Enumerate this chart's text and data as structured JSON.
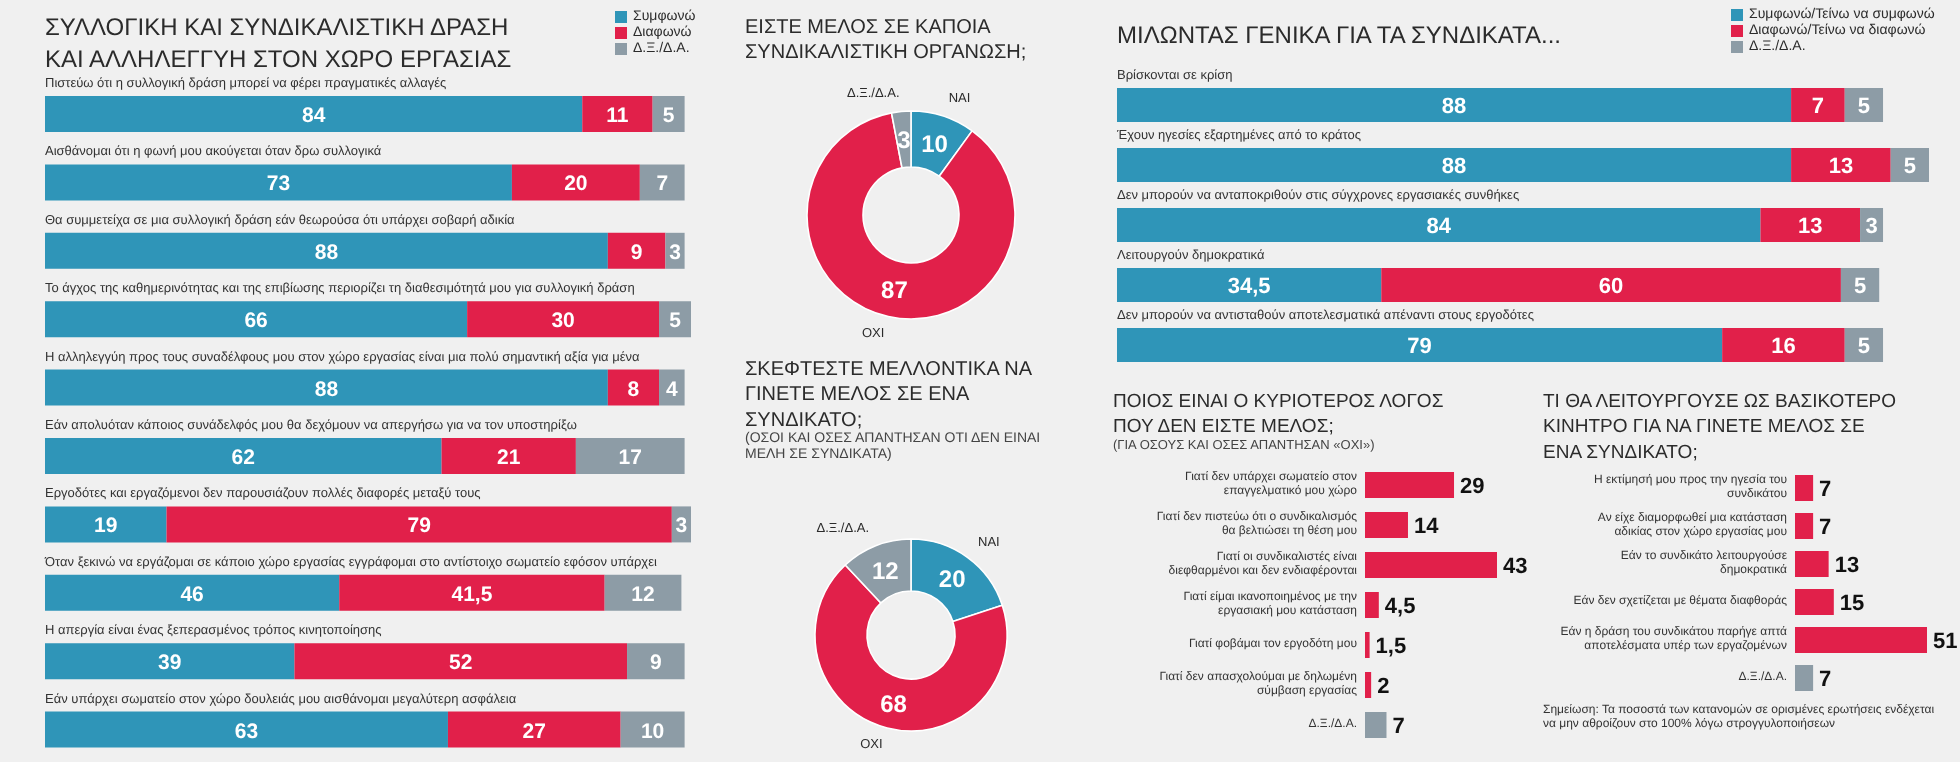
{
  "chart_data": [
    {
      "type": "bar",
      "orientation": "horizontal",
      "stacked": true,
      "legend": "top right",
      "title": "ΣΥΛΛΟΓΙΚΗ ΚΑΙ ΣΥΝΔΙΚΑΛΙΣΤΙΚΗ ΔΡΑΣΗ ΚΑΙ ΑΛΛΗΛΕΓΓΥΗ ΣΤΟΝ ΧΩΡΟ ΕΡΓΑΣΙΑΣ",
      "categories": [
        "Πιστεύω ότι η συλλογική δράση μπορεί να φέρει πραγματικές αλλαγές",
        "Αισθάνομαι ότι η φωνή μου ακούγεται όταν δρω συλλογικά",
        "Θα συμμετείχα σε μια συλλογική δράση εάν θεωρούσα ότι υπάρχει σοβαρή αδικία",
        "Το άγχος της καθημερινότητας και της επιβίωσης περιορίζει τη διαθεσιμότητά μου για συλλογική δράση",
        "Η αλληλεγγύη προς τους συναδέλφους μου στον χώρο εργασίας είναι μια πολύ σημαντική αξία για μένα",
        "Εάν απολυόταν κάποιος συνάδελφός μου θα δεχόμουν να απεργήσω για να τον υποστηρίξω",
        "Εργοδότες και εργαζόμενοι δεν παρουσιάζουν πολλές διαφορές μεταξύ τους",
        "Όταν ξεκινώ να εργάζομαι σε κάποιο χώρο εργασίας εγγράφομαι στο αντίστοιχο σωματείο εφόσον υπάρχει",
        "Η απεργία είναι ένας ξεπερασμένος τρόπος κινητοποίησης",
        "Εάν υπάρχει σωματείο στον χώρο δουλειάς μου αισθάνομαι μεγαλύτερη ασφάλεια"
      ],
      "series": [
        {
          "name": "Συμφωνώ",
          "color": "#2f95b8",
          "values": [
            84,
            73,
            88,
            66,
            88,
            62,
            19,
            46,
            39,
            63
          ],
          "value_labels": [
            "84",
            "73",
            "88",
            "66",
            "88",
            "62",
            "19",
            "46",
            "39",
            "63"
          ]
        },
        {
          "name": "Διαφωνώ",
          "color": "#e1204a",
          "values": [
            11,
            20,
            9,
            30,
            8,
            21,
            79,
            41.5,
            52,
            27
          ],
          "value_labels": [
            "11",
            "20",
            "9",
            "30",
            "8",
            "21",
            "79",
            "41,5",
            "52",
            "27"
          ]
        },
        {
          "name": "Δ.Ξ./Δ.Α.",
          "color": "#8d9ca6",
          "values": [
            5,
            7,
            3,
            5,
            4,
            17,
            3,
            12,
            9,
            10
          ],
          "value_labels": [
            "5",
            "7",
            "3",
            "5",
            "4",
            "17",
            "3",
            "12",
            "9",
            "10"
          ]
        }
      ]
    },
    {
      "type": "donut",
      "title": "ΕΙΣΤΕ ΜΕΛΟΣ ΣΕ ΚΑΠΟΙΑ ΣΥΝΔΙΚΑΛΙΣΤΙΚΗ ΟΡΓΑΝΩΣΗ;",
      "data_labels": true,
      "categories": [
        "ΝΑΙ",
        "ΟΧΙ",
        "Δ.Ξ./Δ.Α."
      ],
      "values": [
        10,
        87,
        3
      ],
      "colors": [
        "#2f95b8",
        "#e1204a",
        "#8d9ca6"
      ]
    },
    {
      "type": "donut",
      "title": "ΣΚΕΦΤΕΣΤΕ ΜΕΛΛΟΝΤΙΚΑ ΝΑ ΓΙΝΕΤΕ ΜΕΛΟΣ ΣΕ ΕΝΑ ΣΥΝΔΙΚΑΤΟ;",
      "subtitle": "(ΟΣΟΙ ΚΑΙ ΟΣΕΣ ΑΠΑΝΤΗΣΑΝ ΟΤΙ ΔΕΝ ΕΙΝΑΙ ΜΕΛΗ ΣΕ ΣΥΝΔΙΚΑΤΑ)",
      "data_labels": true,
      "categories": [
        "ΝΑΙ",
        "ΟΧΙ",
        "Δ.Ξ./Δ.Α."
      ],
      "values": [
        20,
        68,
        12
      ],
      "colors": [
        "#2f95b8",
        "#e1204a",
        "#8d9ca6"
      ]
    },
    {
      "type": "bar",
      "orientation": "horizontal",
      "stacked": true,
      "legend": "top right",
      "title": "ΜΙΛΩΝΤΑΣ ΓΕΝΙΚΑ ΓΙΑ ΤΑ ΣΥΝΔΙΚΑΤΑ...",
      "categories": [
        "Βρίσκονται σε κρίση",
        "Έχουν ηγεσίες εξαρτημένες από το κράτος",
        "Δεν μπορούν να ανταποκριθούν στις σύγχρονες εργασιακές συνθήκες",
        "Λειτουργούν δημοκρατικά",
        "Δεν μπορούν να αντισταθούν αποτελεσματικά απέναντι στους εργοδότες"
      ],
      "series": [
        {
          "name": "Συμφωνώ/Τείνω να συμφωνώ",
          "color": "#2f95b8",
          "values": [
            88,
            88,
            84,
            34.5,
            79
          ],
          "value_labels": [
            "88",
            "88",
            "84",
            "34,5",
            "79"
          ]
        },
        {
          "name": "Διαφωνώ/Τείνω να διαφωνώ",
          "color": "#e1204a",
          "values": [
            7,
            13,
            13,
            60,
            16
          ],
          "value_labels": [
            "7",
            "13",
            "13",
            "60",
            "16"
          ]
        },
        {
          "name": "Δ.Ξ./Δ.Α.",
          "color": "#8d9ca6",
          "values": [
            5,
            5,
            3,
            5,
            5
          ],
          "value_labels": [
            "5",
            "5",
            "3",
            "5",
            "5"
          ]
        }
      ]
    },
    {
      "type": "bar",
      "orientation": "horizontal",
      "title": "ΠΟΙΟΣ ΕΙΝΑΙ Ο ΚΥΡΙΟΤΕΡΟΣ ΛΟΓΟΣ ΠΟΥ ΔΕΝ ΕΙΣΤΕ ΜΕΛΟΣ;",
      "subtitle": "(ΓΙΑ ΟΣΟΥΣ ΚΑΙ ΟΣΕΣ ΑΠΑΝΤΗΣΑΝ «ΟΧΙ»)",
      "categories": [
        "Γιατί δεν υπάρχει σωματείο στον επαγγελματικό μου χώρο",
        "Γιατί δεν πιστεύω ότι ο συνδικαλισμός θα βελτιώσει τη θέση μου",
        "Γιατί οι συνδικαλιστές είναι διεφθαρμένοι και δεν ενδιαφέρονται",
        "Γιατί είμαι ικανοποιημένος με την εργασιακή μου κατάσταση",
        "Γιατί φοβάμαι τον εργοδότη μου",
        "Γιατί δεν απασχολούμαι με δηλωμένη σύμβαση εργασίας",
        "Δ.Ξ./Δ.Α."
      ],
      "values": [
        29,
        14,
        43,
        4.5,
        1.5,
        2,
        7
      ],
      "value_labels": [
        "29",
        "14",
        "43",
        "4,5",
        "1,5",
        "2",
        "7"
      ],
      "colors": [
        "#e1204a",
        "#e1204a",
        "#e1204a",
        "#e1204a",
        "#e1204a",
        "#e1204a",
        "#8d9ca6"
      ]
    },
    {
      "type": "bar",
      "orientation": "horizontal",
      "title": "ΤΙ ΘΑ ΛΕΙΤΟΥΡΓΟΥΣΕ ΩΣ ΒΑΣΙΚΟΤΕΡΟ ΚΙΝΗΤΡΟ ΓΙΑ ΝΑ ΓΙΝΕΤΕ ΜΕΛΟΣ ΣΕ ΕΝΑ ΣΥΝΔΙΚΑΤΟ;",
      "categories": [
        "Η εκτίμησή μου προς την ηγεσία του συνδικάτου",
        "Αν είχε διαμορφωθεί μια κατάσταση αδικίας στον χώρο εργασίας μου",
        "Εάν το συνδικάτο λειτουργούσε δημοκρατικά",
        "Εάν δεν σχετίζεται με θέματα διαφθοράς",
        "Εάν η δράση του συνδικάτου παρήγε απτά αποτελέσματα υπέρ των εργαζομένων",
        "Δ.Ξ./Δ.Α."
      ],
      "values": [
        7,
        7,
        13,
        15,
        51,
        7
      ],
      "value_labels": [
        "7",
        "7",
        "13",
        "15",
        "51",
        "7"
      ],
      "colors": [
        "#e1204a",
        "#e1204a",
        "#e1204a",
        "#e1204a",
        "#e1204a",
        "#8d9ca6"
      ],
      "annotations": [
        "Σημείωση: Τα ποσοστά των κατανομών σε ορισμένες ερωτήσεις ενδέχεται να μην αθροίζουν στο 100% λόγω στρογγυλοποιήσεων"
      ]
    }
  ]
}
